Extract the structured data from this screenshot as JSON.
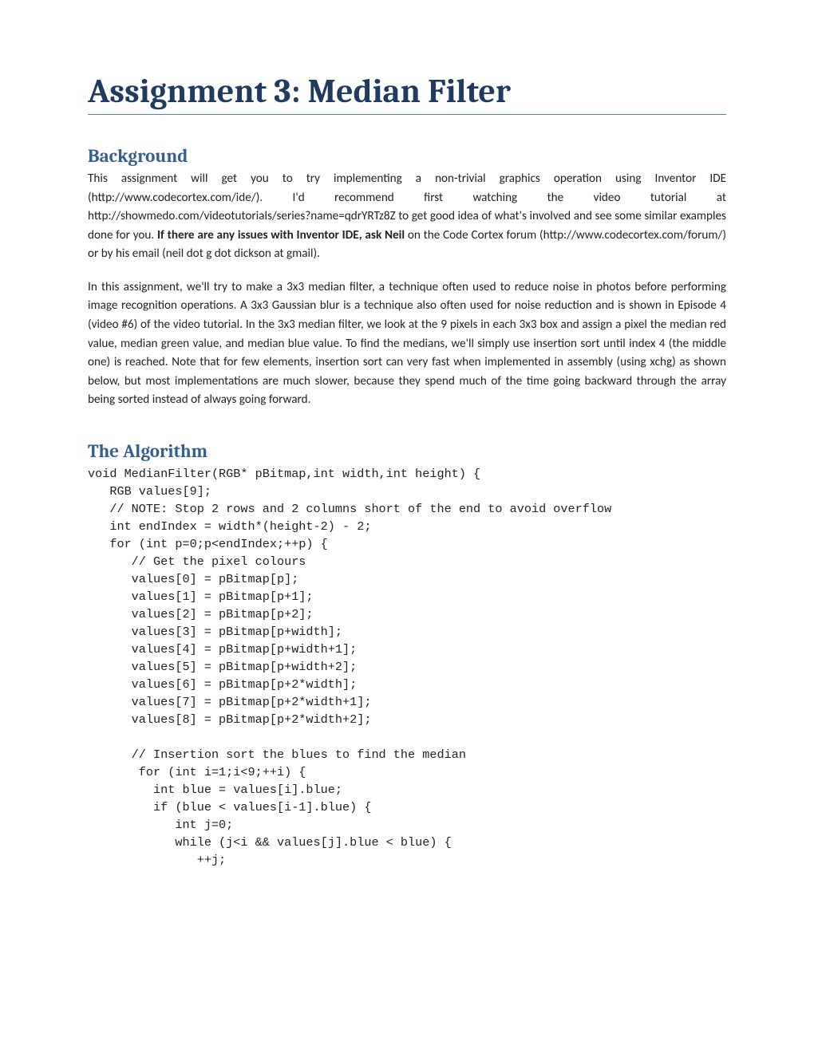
{
  "title": "Assignment 3: Median Filter",
  "sections": {
    "background": {
      "heading": "Background",
      "p1_pre": "This assignment will get you to try implementing a non-trivial graphics operation using Inventor IDE (http://www.codecortex.com/ide/).  I'd recommend first watching the video tutorial at http://showmedo.com/videotutorials/series?name=qdrYRTz8Z to get good idea of what's involved and see some similar examples done for you.  ",
      "p1_bold": "If there are any issues with Inventor IDE, ask Neil",
      "p1_post": " on the Code Cortex forum (http://www.codecortex.com/forum/) or by his email (neil dot g dot dickson at gmail).",
      "p2": "In this assignment, we'll try to make a 3x3 median filter, a technique often used to reduce noise in photos before performing image recognition operations.  A 3x3 Gaussian blur is a technique also often used for noise reduction and is shown in Episode 4 (video #6) of the video tutorial.  In the 3x3 median filter, we look at the 9 pixels in each 3x3 box and assign a pixel the median red value, median green value, and median blue value.  To find the medians, we'll simply use insertion sort until index 4 (the middle one) is reached.  Note that for few elements, insertion sort can very fast when implemented in assembly (using xchg) as shown below, but most implementations are much slower, because they spend much of the time going backward through the array being sorted instead of always going forward."
    },
    "algorithm": {
      "heading": "The Algorithm",
      "code": "void MedianFilter(RGB* pBitmap,int width,int height) {\n   RGB values[9];\n   // NOTE: Stop 2 rows and 2 columns short of the end to avoid overflow\n   int endIndex = width*(height-2) - 2;\n   for (int p=0;p<endIndex;++p) {\n      // Get the pixel colours\n      values[0] = pBitmap[p];\n      values[1] = pBitmap[p+1];\n      values[2] = pBitmap[p+2];\n      values[3] = pBitmap[p+width];\n      values[4] = pBitmap[p+width+1];\n      values[5] = pBitmap[p+width+2];\n      values[6] = pBitmap[p+2*width];\n      values[7] = pBitmap[p+2*width+1];\n      values[8] = pBitmap[p+2*width+2];\n\n      // Insertion sort the blues to find the median\n       for (int i=1;i<9;++i) {\n         int blue = values[i].blue;\n         if (blue < values[i-1].blue) {\n            int j=0;\n            while (j<i && values[j].blue < blue) {\n               ++j;"
    }
  },
  "colors": {
    "title": "#1f3b60",
    "rule": "#4f81bd",
    "heading": "#365f91",
    "body": "#222222",
    "background": "#ffffff"
  },
  "fonts": {
    "title_family": "Cambria",
    "title_size_pt": 32,
    "heading_family": "Cambria",
    "heading_size_pt": 17,
    "body_family": "Calibri",
    "body_size_pt": 11,
    "code_family": "Courier New",
    "code_size_pt": 11
  }
}
